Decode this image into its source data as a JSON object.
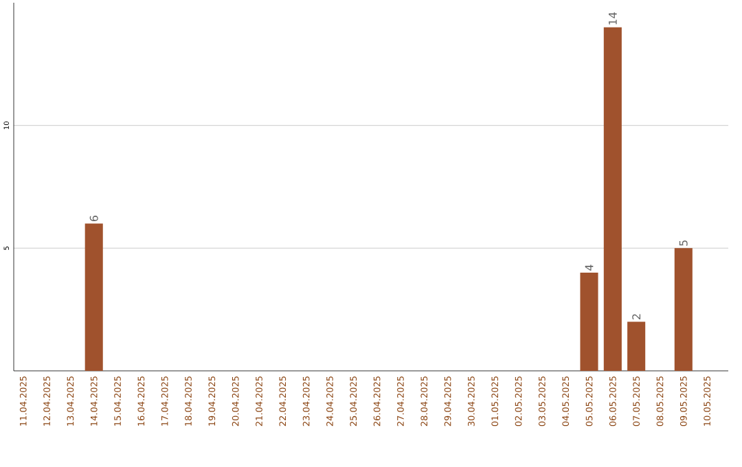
{
  "chart_data": {
    "type": "bar",
    "categories": [
      "11.04.2025",
      "12.04.2025",
      "13.04.2025",
      "14.04.2025",
      "15.04.2025",
      "16.04.2025",
      "17.04.2025",
      "18.04.2025",
      "19.04.2025",
      "20.04.2025",
      "21.04.2025",
      "22.04.2025",
      "23.04.2025",
      "24.04.2025",
      "25.04.2025",
      "26.04.2025",
      "27.04.2025",
      "28.04.2025",
      "29.04.2025",
      "30.04.2025",
      "01.05.2025",
      "02.05.2025",
      "03.05.2025",
      "04.05.2025",
      "05.05.2025",
      "06.05.2025",
      "07.05.2025",
      "08.05.2025",
      "09.05.2025",
      "10.05.2025"
    ],
    "values": [
      0,
      0,
      0,
      6,
      0,
      0,
      0,
      0,
      0,
      0,
      0,
      0,
      0,
      0,
      0,
      0,
      0,
      0,
      0,
      0,
      0,
      0,
      0,
      0,
      4,
      14,
      2,
      0,
      5,
      0
    ],
    "value_labels": [
      null,
      null,
      null,
      "6",
      null,
      null,
      null,
      null,
      null,
      null,
      null,
      null,
      null,
      null,
      null,
      null,
      null,
      null,
      null,
      null,
      null,
      null,
      null,
      null,
      "4",
      "14",
      "2",
      null,
      "5",
      null
    ],
    "color": "#a0522d",
    "ylim": [
      0,
      15
    ],
    "yticks": [
      5,
      10
    ],
    "grid": "y"
  }
}
